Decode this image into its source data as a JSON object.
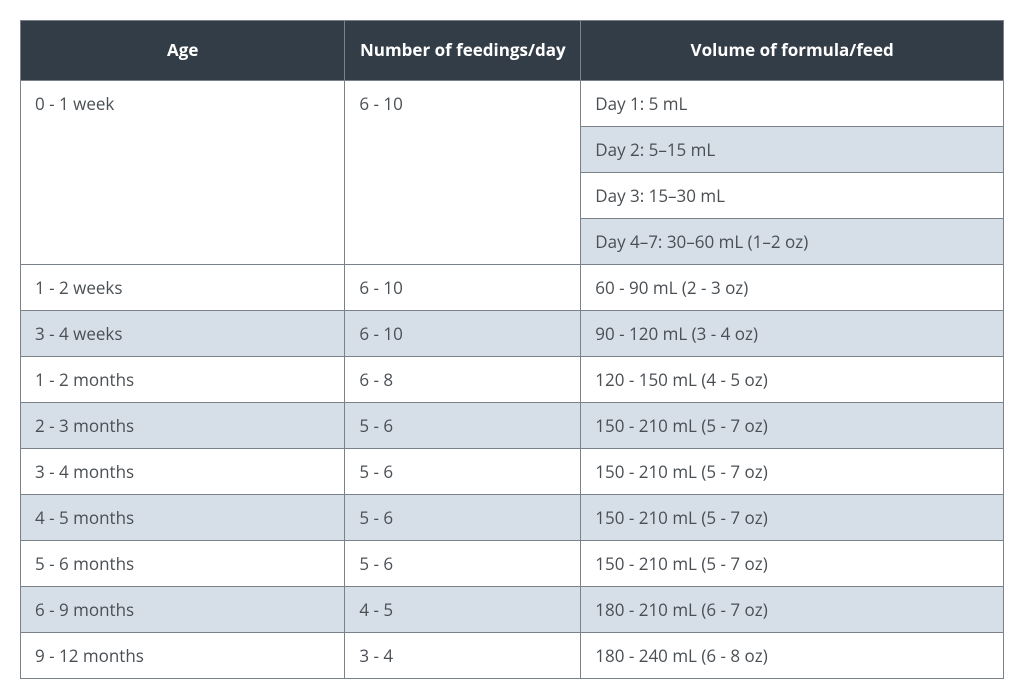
{
  "table": {
    "header_bg": "#333d47",
    "header_text": "#ffffff",
    "text_color": "#4a4f54",
    "border_color": "#7a8188",
    "row_bg_white": "#ffffff",
    "row_bg_shade": "#d6dee7",
    "columns": [
      "Age",
      "Number of feedings/day",
      "Volume of formula/feed"
    ],
    "col_widths_pct": [
      33,
      24,
      43
    ],
    "header_fontsize": 17,
    "body_fontsize": 17,
    "rows": [
      {
        "age": "0 - 1 week",
        "feedings": "6 - 10",
        "volumes": [
          {
            "text": "Day 1: 5 mL",
            "shaded": false
          },
          {
            "text": "Day 2: 5–15 mL",
            "shaded": true
          },
          {
            "text": "Day 3: 15–30 mL",
            "shaded": false
          },
          {
            "text": "Day 4–7: 30–60 mL (1–2 oz)",
            "shaded": true
          }
        ],
        "shaded": false
      },
      {
        "age": "1 - 2 weeks",
        "feedings": "6 - 10",
        "volume": "60 - 90 mL (2 - 3 oz)",
        "shaded": false
      },
      {
        "age": "3 - 4 weeks",
        "feedings": "6 - 10",
        "volume": "90 - 120 mL (3 - 4 oz)",
        "shaded": true
      },
      {
        "age": "1 - 2 months",
        "feedings": "6 - 8",
        "volume": "120 - 150 mL (4 - 5 oz)",
        "shaded": false
      },
      {
        "age": "2 - 3 months",
        "feedings": "5 - 6",
        "volume": "150 - 210 mL (5 - 7 oz)",
        "shaded": true
      },
      {
        "age": "3 - 4 months",
        "feedings": "5 - 6",
        "volume": "150 - 210 mL (5 - 7 oz)",
        "shaded": false
      },
      {
        "age": "4 - 5 months",
        "feedings": "5 - 6",
        "volume": "150 - 210 mL (5 - 7 oz)",
        "shaded": true
      },
      {
        "age": "5 - 6 months",
        "feedings": "5 - 6",
        "volume": "150 - 210 mL (5 - 7 oz)",
        "shaded": false
      },
      {
        "age": "6 - 9 months",
        "feedings": "4 - 5",
        "volume": "180 - 210 mL (6 - 7 oz)",
        "shaded": true
      },
      {
        "age": "9 - 12 months",
        "feedings": "3 - 4",
        "volume": "180 - 240 mL (6 - 8 oz)",
        "shaded": false
      }
    ]
  }
}
